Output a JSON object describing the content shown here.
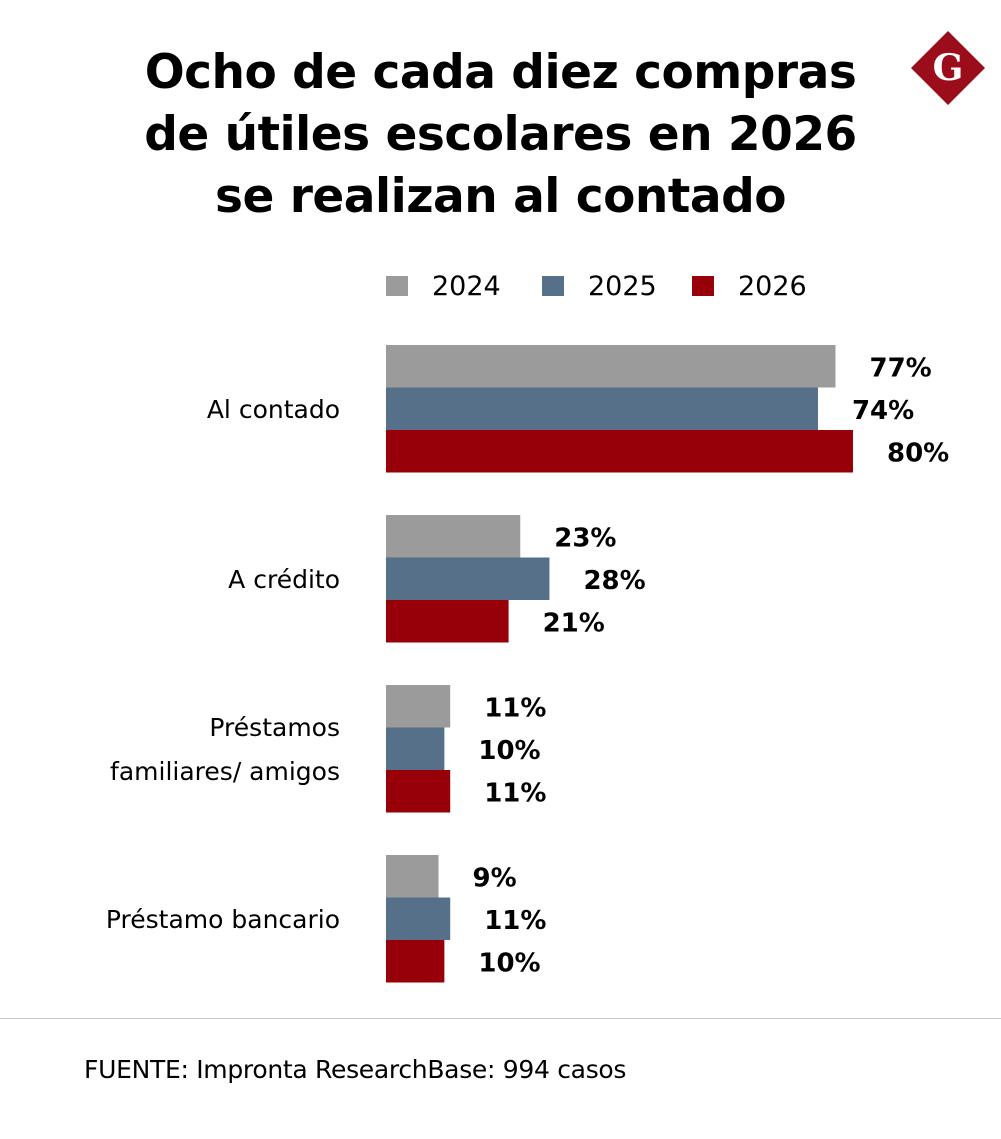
{
  "title_lines": [
    "Ocho de cada diez compras",
    "de útiles escolares en 2026",
    "se realizan al contado"
  ],
  "logo": {
    "icon": "g-diamond-logo-icon",
    "letter": "G",
    "color": "#9b0d1a"
  },
  "source": "FUENTE: Impronta ResearchBase: 994 casos",
  "chart_data": {
    "type": "bar",
    "orientation": "horizontal",
    "title": "Ocho de cada diez compras de útiles escolares en 2026 se realizan al contado",
    "xlabel": "",
    "ylabel": "",
    "xlim": [
      0,
      80
    ],
    "grid": false,
    "legend_position": "top",
    "value_suffix": "%",
    "categories": [
      [
        "Al contado"
      ],
      [
        "A crédito"
      ],
      [
        "Préstamos",
        "familiares/ amigos"
      ],
      [
        "Préstamo bancario"
      ]
    ],
    "series": [
      {
        "name": "2024",
        "color": "#9b9b9b",
        "values": [
          77,
          23,
          11,
          9
        ]
      },
      {
        "name": "2025",
        "color": "#557088",
        "values": [
          74,
          28,
          10,
          11
        ]
      },
      {
        "name": "2026",
        "color": "#970008",
        "values": [
          80,
          21,
          11,
          10
        ]
      }
    ],
    "data_labels": [
      [
        "77%",
        "23%",
        "11%",
        "9%"
      ],
      [
        "74%",
        "28%",
        "10%",
        "11%"
      ],
      [
        "80%",
        "21%",
        "11%",
        "10%"
      ]
    ]
  }
}
